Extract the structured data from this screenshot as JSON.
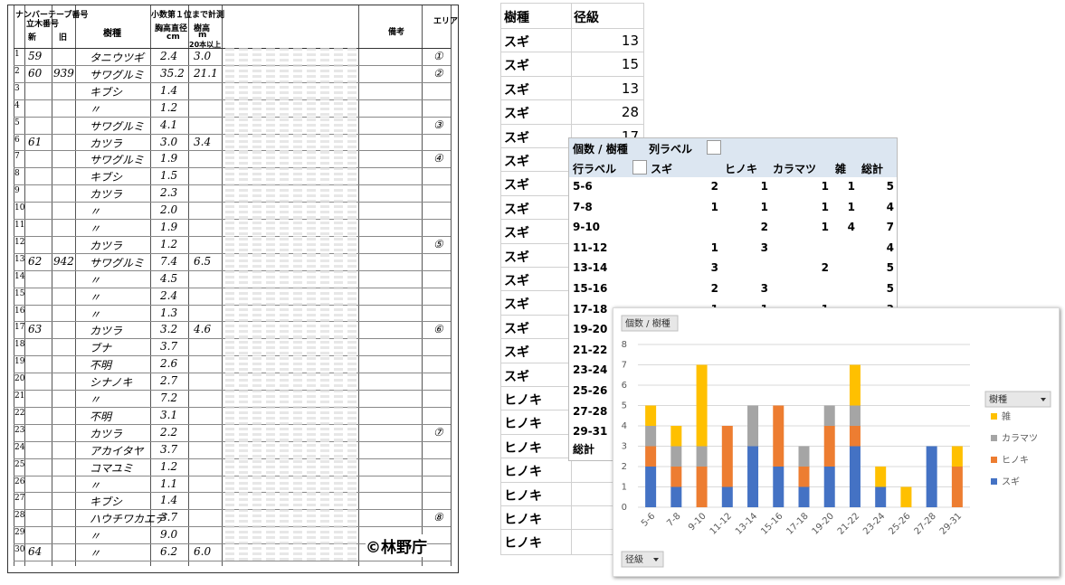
{
  "form": {
    "headers": [
      "ナンバーテープ番号",
      "立木番号",
      "新",
      "旧",
      "樹種",
      "小数第１位まで計測",
      "胸高直径",
      "cm",
      "樹高",
      "m",
      "20本以上",
      "備考",
      "エリア"
    ],
    "rows": [
      [
        "1",
        "59",
        null,
        "タニウツギ",
        "2.4",
        "3.0",
        "①"
      ],
      [
        "2",
        "60",
        "939",
        "サワグルミ",
        "35.2",
        "21.1",
        "②"
      ],
      [
        "3",
        null,
        null,
        "キブシ",
        "1.4",
        null,
        null
      ],
      [
        "4",
        null,
        null,
        "〃",
        "1.2",
        null,
        null
      ],
      [
        "5",
        null,
        null,
        "サワグルミ",
        "4.1",
        null,
        "③"
      ],
      [
        "6",
        "61",
        null,
        "カツラ",
        "3.0",
        "3.4",
        null
      ],
      [
        "7",
        null,
        null,
        "サワグルミ",
        "1.9",
        null,
        "④"
      ],
      [
        "8",
        null,
        null,
        "キブシ",
        "1.5",
        null,
        null
      ],
      [
        "9",
        null,
        null,
        "カツラ",
        "2.3",
        null,
        null
      ],
      [
        "10",
        null,
        null,
        "〃",
        "2.0",
        null,
        null
      ],
      [
        "11",
        null,
        null,
        "〃",
        "1.9",
        null,
        null
      ],
      [
        "12",
        null,
        null,
        "カツラ",
        "1.2",
        null,
        "⑤"
      ],
      [
        "13",
        "62",
        "942",
        "サワグルミ",
        "7.4",
        "6.5",
        null
      ],
      [
        "14",
        null,
        null,
        "〃",
        "4.5",
        null,
        null
      ],
      [
        "15",
        null,
        null,
        "〃",
        "2.4",
        null,
        null
      ],
      [
        "16",
        null,
        null,
        "〃",
        "1.3",
        null,
        null
      ],
      [
        "17",
        "63",
        null,
        "カツラ",
        "3.2",
        "4.6",
        "⑥"
      ],
      [
        "18",
        null,
        null,
        "ブナ",
        "3.7",
        null,
        null
      ],
      [
        "19",
        null,
        null,
        "不明",
        "2.6",
        null,
        null
      ],
      [
        "20",
        null,
        null,
        "シナノキ",
        "2.7",
        null,
        null
      ],
      [
        "21",
        null,
        null,
        "〃",
        "7.2",
        null,
        null
      ],
      [
        "22",
        null,
        null,
        "不明",
        "3.1",
        null,
        null
      ],
      [
        "23",
        null,
        null,
        "カツラ",
        "2.2",
        null,
        "⑦"
      ],
      [
        "24",
        null,
        null,
        "アカイタヤ",
        "3.7",
        null,
        null
      ],
      [
        "25",
        null,
        null,
        "コマユミ",
        "1.2",
        null,
        null
      ],
      [
        "26",
        null,
        null,
        "〃",
        "1.1",
        null,
        null
      ],
      [
        "27",
        null,
        null,
        "キブシ",
        "1.4",
        null,
        null
      ],
      [
        "28",
        null,
        null,
        "ハウチワカエデ",
        "3.7",
        null,
        "⑧"
      ],
      [
        "29",
        null,
        null,
        "〃",
        "9.0",
        null,
        null
      ],
      [
        "30",
        "64",
        null,
        "〃",
        "6.2",
        "6.0",
        null
      ]
    ],
    "credit": "©林野庁"
  },
  "sheet": {
    "headers": [
      "樹種",
      "径級"
    ],
    "species": [
      "スギ",
      "スギ",
      "スギ",
      "スギ",
      "スギ",
      "スギ",
      "スギ",
      "スギ",
      "スギ",
      "スギ",
      "スギ",
      "スギ",
      "スギ",
      "スギ",
      "スギ",
      "ヒノキ",
      "ヒノキ",
      "ヒノキ",
      "ヒノキ",
      "ヒノキ",
      "ヒノキ",
      "ヒノキ"
    ],
    "sizes": [
      13,
      15,
      13,
      28,
      17
    ]
  },
  "pivot": {
    "value_field": "個数 / 樹種",
    "column_label": "列ラベル",
    "row_label": "行ラベル",
    "columns": [
      "スギ",
      "ヒノキ",
      "カラマツ",
      "雑",
      "総計"
    ],
    "rows": [
      {
        "label": "5-6",
        "cells": [
          2,
          1,
          1,
          1,
          5
        ]
      },
      {
        "label": "7-8",
        "cells": [
          1,
          1,
          1,
          1,
          4
        ]
      },
      {
        "label": "9-10",
        "cells": [
          null,
          2,
          1,
          4,
          7
        ]
      },
      {
        "label": "11-12",
        "cells": [
          1,
          3,
          null,
          null,
          4
        ]
      },
      {
        "label": "13-14",
        "cells": [
          3,
          null,
          2,
          null,
          5
        ]
      },
      {
        "label": "15-16",
        "cells": [
          2,
          3,
          null,
          null,
          5
        ]
      },
      {
        "label": "17-18",
        "cells": [
          1,
          1,
          1,
          null,
          3
        ]
      },
      {
        "label": "19-20"
      },
      {
        "label": "21-22"
      },
      {
        "label": "23-24"
      },
      {
        "label": "25-26"
      },
      {
        "label": "27-28"
      },
      {
        "label": "29-31"
      },
      {
        "label": "総計"
      }
    ]
  },
  "chart_data": {
    "type": "stacked_bar",
    "value_field": "個数 / 樹種",
    "axis_field": "径級",
    "legend_title": "樹種",
    "legend": "right",
    "categories": [
      "5-6",
      "7-8",
      "9-10",
      "11-12",
      "13-14",
      "15-16",
      "17-18",
      "19-20",
      "21-22",
      "23-24",
      "25-26",
      "27-28",
      "29-31"
    ],
    "series": [
      {
        "name": "スギ",
        "color": "#4472c4",
        "values": [
          2,
          1,
          0,
          1,
          3,
          2,
          1,
          2,
          3,
          1,
          0,
          3,
          0
        ]
      },
      {
        "name": "ヒノキ",
        "color": "#ed7d31",
        "values": [
          1,
          1,
          2,
          3,
          0,
          3,
          1,
          2,
          1,
          0,
          0,
          0,
          2
        ]
      },
      {
        "name": "カラマツ",
        "color": "#a5a5a5",
        "values": [
          1,
          1,
          1,
          0,
          2,
          0,
          1,
          1,
          1,
          0,
          0,
          0,
          0
        ]
      },
      {
        "name": "雑",
        "color": "#ffc000",
        "values": [
          1,
          1,
          4,
          0,
          0,
          0,
          0,
          0,
          2,
          1,
          1,
          0,
          1
        ]
      }
    ],
    "ylim": [
      0,
      8
    ],
    "yticks": [
      0,
      1,
      2,
      3,
      4,
      5,
      6,
      7,
      8
    ],
    "grid": true
  }
}
